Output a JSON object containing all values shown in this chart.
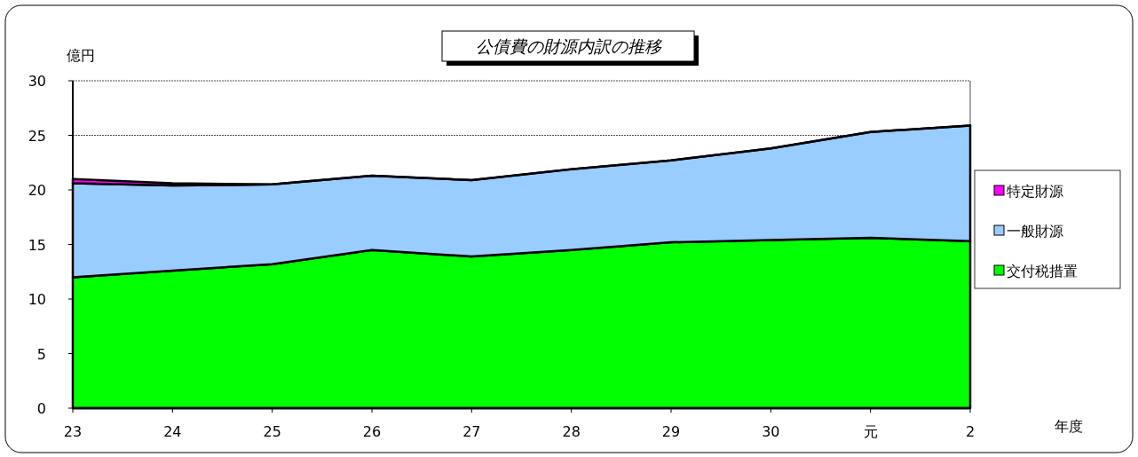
{
  "chart_data": {
    "type": "area",
    "title": "公債費の財源内訳の推移",
    "ylabel": "億円",
    "annotations": [
      "年度"
    ],
    "stacked": true,
    "categories": [
      "23",
      "24",
      "25",
      "26",
      "27",
      "28",
      "29",
      "30",
      "元",
      "2"
    ],
    "series": [
      {
        "name": "交付税措置",
        "color": "#00ff00",
        "values": [
          12.0,
          12.6,
          13.2,
          14.5,
          13.9,
          14.5,
          15.2,
          15.4,
          15.6,
          15.3
        ]
      },
      {
        "name": "一般財源",
        "color": "#99ccff",
        "values": [
          8.6,
          7.8,
          7.3,
          6.8,
          7.0,
          7.4,
          7.5,
          8.4,
          9.7,
          10.6
        ]
      },
      {
        "name": "特定財源",
        "color": "#ff00ff",
        "values": [
          0.4,
          0.2,
          0,
          0,
          0,
          0,
          0,
          0,
          0,
          0
        ]
      }
    ],
    "ylim": [
      0,
      30
    ],
    "yticks": [
      0,
      5,
      10,
      15,
      20,
      25,
      30
    ],
    "grid": "y",
    "legend": "right"
  }
}
